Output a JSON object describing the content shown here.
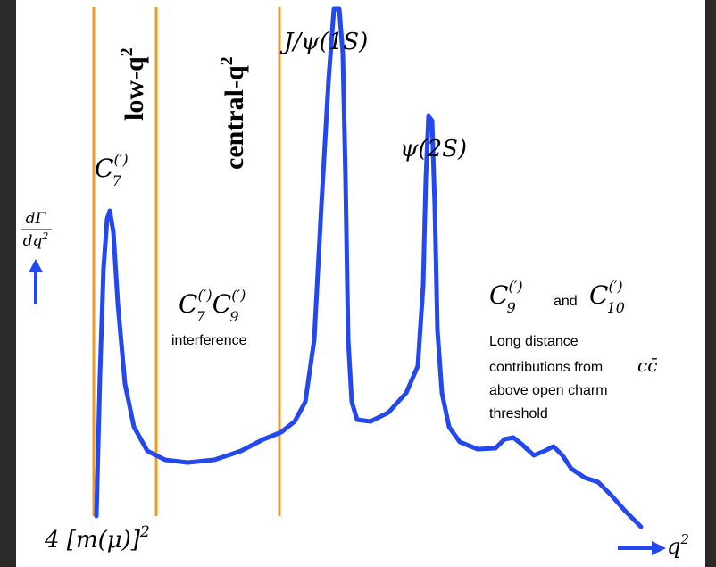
{
  "regions": [
    {
      "label": "low-q",
      "exp": "2"
    },
    {
      "label": "central-q",
      "exp": "2"
    }
  ],
  "peaks": [
    {
      "label": "J/ψ(1S)"
    },
    {
      "label": "ψ(2S)"
    }
  ],
  "annotations": {
    "c7": {
      "symbol": "C",
      "sup": "(′)",
      "sub": "7"
    },
    "interference": {
      "terms": [
        {
          "symbol": "C",
          "sup": "(′)",
          "sub": "7"
        },
        {
          "symbol": "C",
          "sup": "(′)",
          "sub": "9"
        }
      ],
      "text": "interference"
    },
    "high": {
      "terms": [
        {
          "symbol": "C",
          "sup": "(′)",
          "sub": "9"
        },
        {
          "symbol": "C",
          "sup": "(′)",
          "sub": "10"
        }
      ],
      "joiner": "and",
      "lines": [
        "Long distance",
        "contributions from",
        "above open charm",
        "threshold"
      ],
      "cc": "cc̄"
    }
  },
  "axis": {
    "y_num": "dΓ",
    "y_den": "dq",
    "y_den_exp": "2",
    "x_label": "q",
    "x_exp": "2",
    "origin": "4 [m(μ)]",
    "origin_exp": "2"
  }
}
